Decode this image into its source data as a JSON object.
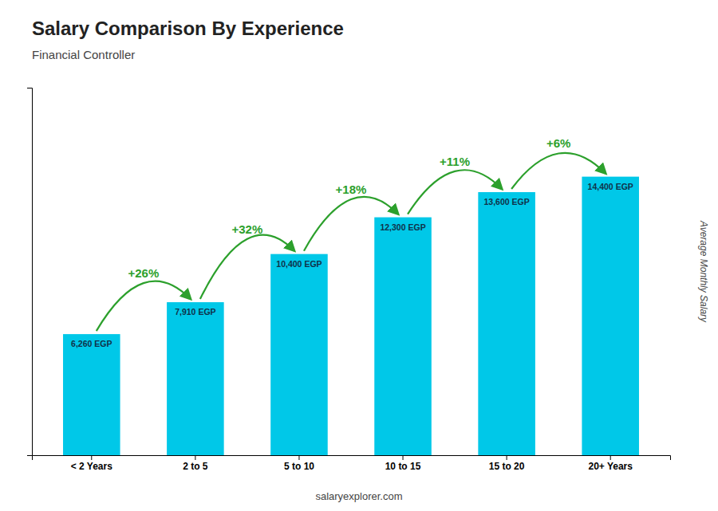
{
  "chart_data": {
    "type": "bar",
    "title": "Salary Comparison By Experience",
    "subtitle": "Financial Controller",
    "ylabel": "Average Monthly Salary",
    "categories": [
      "< 2 Years",
      "2 to 5",
      "5 to 10",
      "10 to 15",
      "15 to 20",
      "20+ Years"
    ],
    "values": [
      6260,
      7910,
      10400,
      12300,
      13600,
      14400
    ],
    "value_labels": [
      "6,260 EGP",
      "7,910 EGP",
      "10,400 EGP",
      "12,300 EGP",
      "13,600 EGP",
      "14,400 EGP"
    ],
    "data_labels": true,
    "color": "#00c8e8",
    "ylim": [
      0,
      19000
    ],
    "tick_labels": "x",
    "annotations": [
      "+26%",
      "+32%",
      "+18%",
      "+11%",
      "+6%",
      "salaryexplorer.com"
    ]
  }
}
